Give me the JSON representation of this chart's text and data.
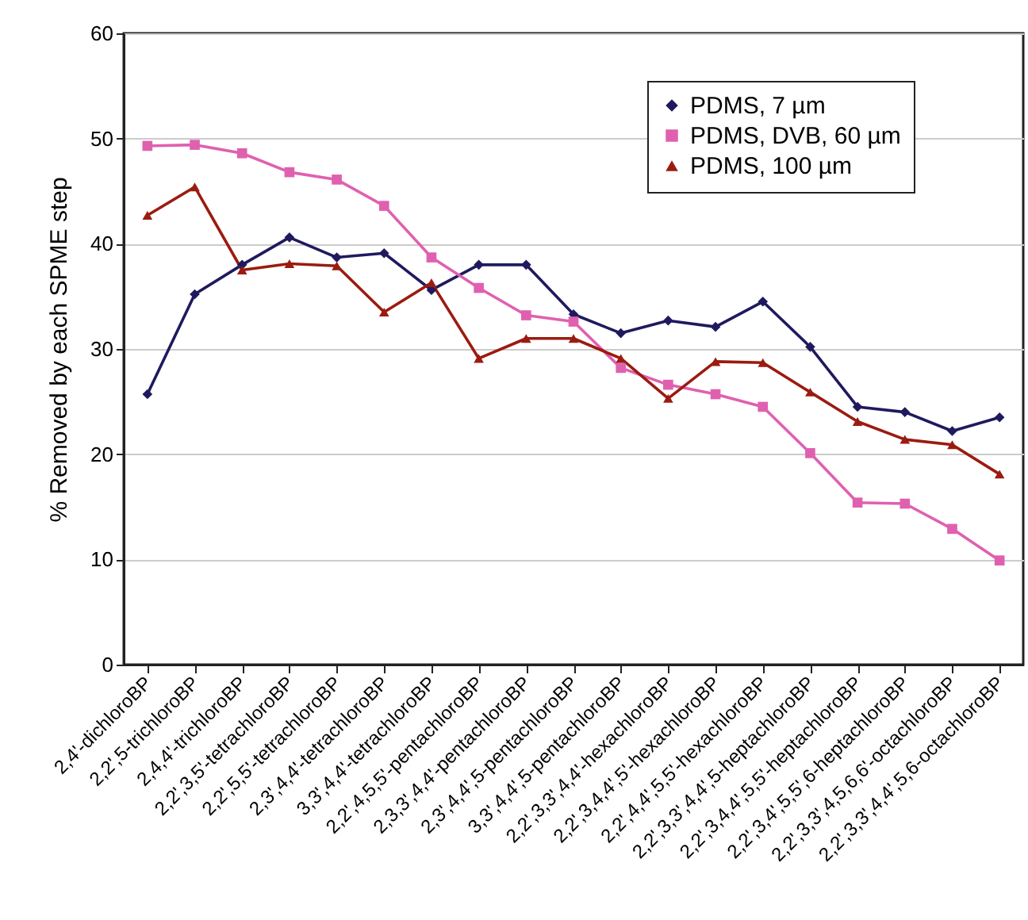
{
  "chart_data": {
    "type": "line",
    "ylabel": "% Removed by each SPME step",
    "categories": [
      "2,4'-dichloroBP",
      "2,2',5-trichloroBP",
      "2,4,4'-trichloroBP",
      "2,2',3,5'-tetrachloroBP",
      "2,2',5,5'-tetrachloroBP",
      "2,3',4,4'-tetrachloroBP",
      "3,3',4,4'-tetrachloroBP",
      "2,2',4,5,5'-pentachloroBP",
      "2,3,3',4,4'-pentachloroBP",
      "2,3',4,4',5-pentachloroBP",
      "3,3',4,4',5-pentachloroBP",
      "2,2',3,3',4,4'-hexachloroBP",
      "2,2',3,4,4',5'-hexachloroBP",
      "2,2',4,4',5,5'-hexachloroBP",
      "2,2',3,3',4,4',5-heptachloroBP",
      "2,2',3,4,4',5,5'-heptachloroBP",
      "2,2',3,4',5,5',6-heptachloroBP",
      "2,2',3,3',4,5,6,6'-octachloroBP",
      "2,2',3,3',4,4',5,6-octachloroBP"
    ],
    "series": [
      {
        "name": "PDMS, 7 µm",
        "color": "#1f1a5e",
        "marker": "diamond",
        "values": [
          25.7,
          35.2,
          38,
          40.6,
          38.7,
          39.1,
          35.6,
          38,
          38,
          33.3,
          31.5,
          32.7,
          32.1,
          34.5,
          30.2,
          24.5,
          24,
          22.2,
          23.5
        ]
      },
      {
        "name": "PDMS, DVB, 60 µm",
        "color": "#e060b0",
        "marker": "square",
        "values": [
          49.3,
          49.4,
          48.6,
          46.8,
          46.1,
          43.6,
          38.7,
          35.8,
          33.2,
          32.6,
          28.2,
          26.6,
          25.7,
          24.5,
          20.1,
          15.4,
          15.3,
          12.9,
          9.9
        ]
      },
      {
        "name": "PDMS, 100 µm",
        "color": "#9b1b10",
        "marker": "triangle",
        "values": [
          42.7,
          45.4,
          37.5,
          38.1,
          37.9,
          33.5,
          36.3,
          29.1,
          31,
          31,
          29.1,
          25.3,
          28.8,
          28.7,
          25.9,
          23.1,
          21.4,
          20.9,
          18.1
        ]
      }
    ],
    "ylim": [
      0,
      60
    ],
    "yticks": [
      0,
      10,
      20,
      30,
      40,
      50,
      60
    ],
    "grid": "y",
    "legend": "top right",
    "line_style": "solid"
  }
}
